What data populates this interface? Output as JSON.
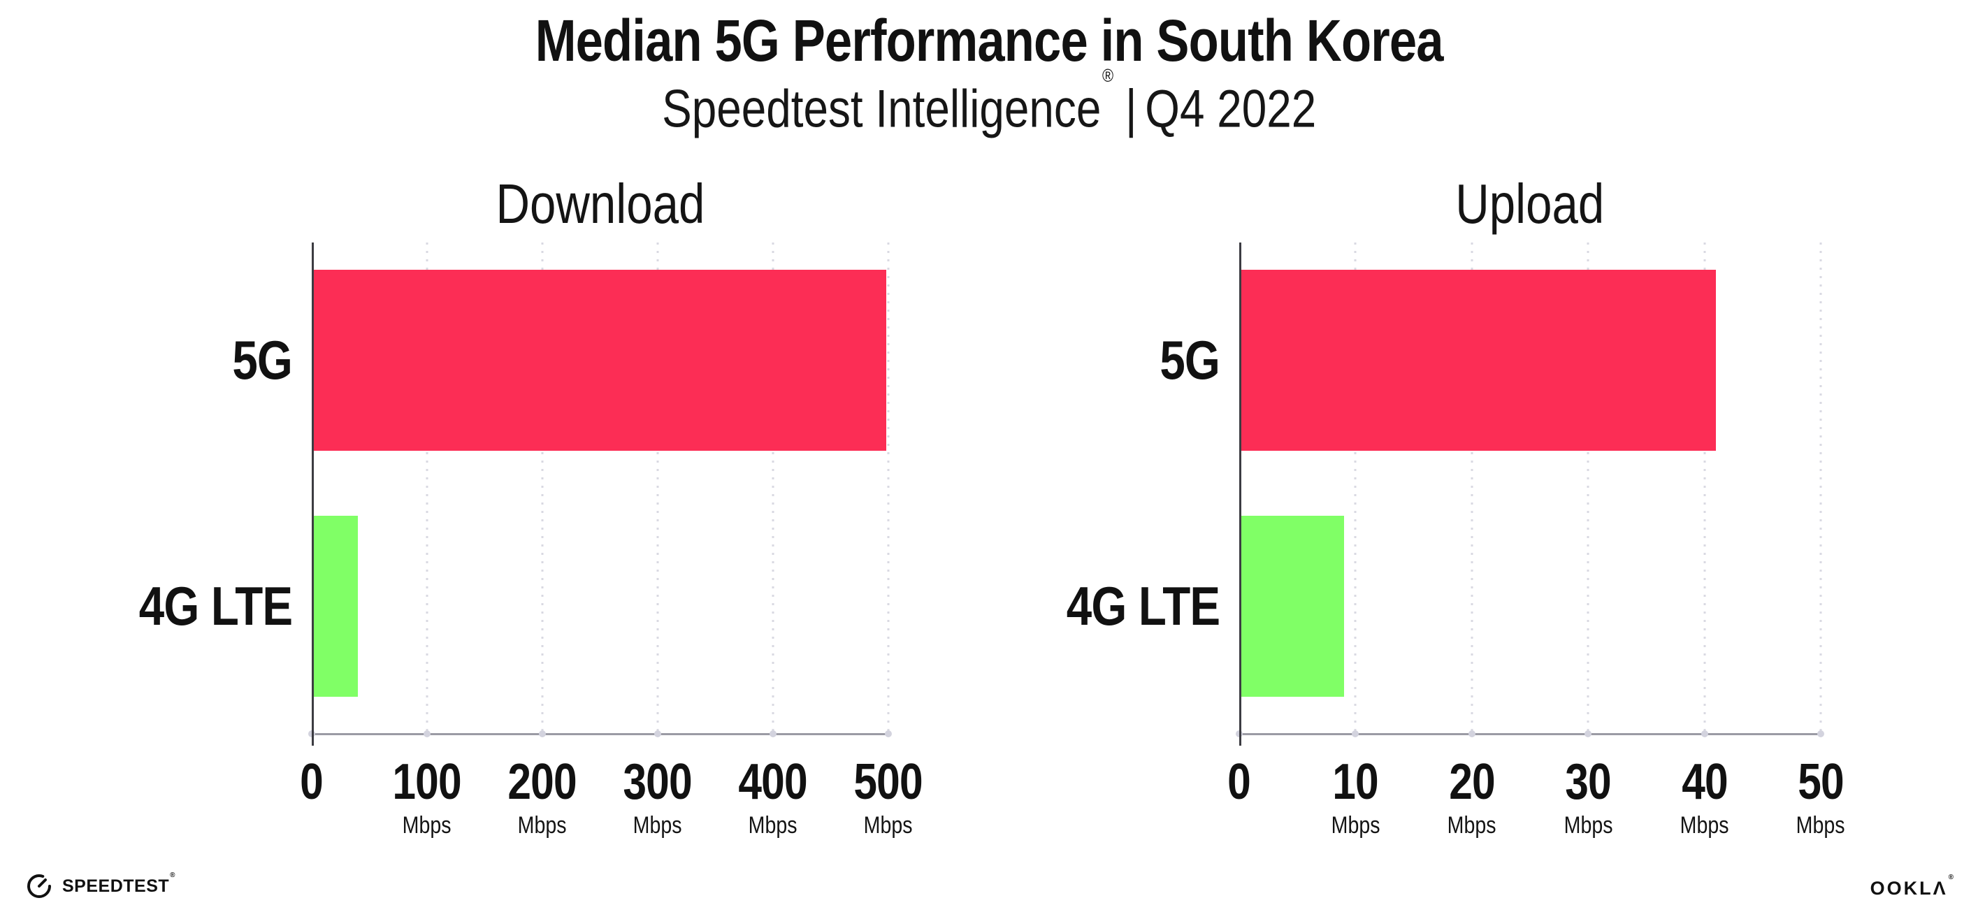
{
  "header": {
    "title": "Median 5G Performance in South Korea",
    "subtitle": {
      "brand": "Speedtest Intelligence",
      "registered": "®",
      "divider": "|",
      "period": "Q4 2022"
    }
  },
  "chart_data": [
    {
      "type": "bar",
      "orientation": "horizontal",
      "title": "Download",
      "categories": [
        "5G",
        "4G LTE"
      ],
      "values": [
        498,
        40
      ],
      "unit": "Mbps",
      "xlabel": "",
      "ylabel": "",
      "xlim": [
        0,
        500
      ],
      "x_ticks": [
        0,
        100,
        200,
        300,
        400,
        500
      ],
      "bar_colors": [
        "#fc2d55",
        "#80ff66"
      ],
      "grid": "vertical-dotted",
      "legend": "none"
    },
    {
      "type": "bar",
      "orientation": "horizontal",
      "title": "Upload",
      "categories": [
        "5G",
        "4G LTE"
      ],
      "values": [
        41,
        9
      ],
      "unit": "Mbps",
      "xlabel": "",
      "ylabel": "",
      "xlim": [
        0,
        50
      ],
      "x_ticks": [
        0,
        10,
        20,
        30,
        40,
        50
      ],
      "bar_colors": [
        "#fc2d55",
        "#80ff66"
      ],
      "grid": "vertical-dotted",
      "legend": "none"
    }
  ],
  "footer": {
    "speedtest_wordmark": "SPEEDTEST",
    "speedtest_registered": "®",
    "ookla_wordmark": "OOKLΛ",
    "ookla_registered": "®"
  },
  "colors": {
    "background": "#ffffff",
    "text": "#111111",
    "bar_5g": "#fc2d55",
    "bar_4g_lte": "#80ff66",
    "gridline": "#d9d9e2",
    "y_axis": "#3c3c42",
    "x_axis": "#9b9ba4"
  }
}
